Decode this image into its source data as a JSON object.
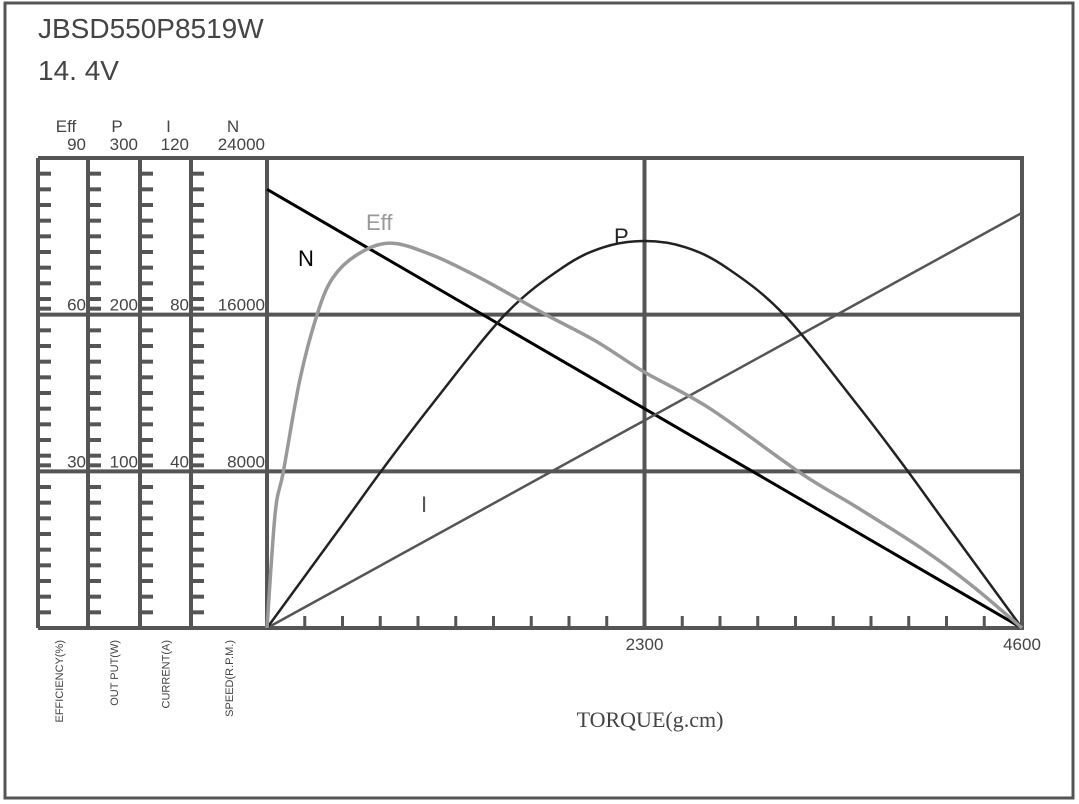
{
  "header": {
    "model": "JBSD550P8519W",
    "voltage": "14. 4V"
  },
  "chart_data": {
    "type": "line",
    "xlabel": "TORQUE(g.cm)",
    "xlim": [
      0,
      4600
    ],
    "x_ticks": [
      "2300",
      "4600"
    ],
    "x_minor_step": 230,
    "grid": true,
    "y_axes": [
      {
        "key": "eff",
        "name": "Eff",
        "label": "EFFICIENCY(%)",
        "max": 90,
        "ticks": [
          "30",
          "60",
          "90"
        ]
      },
      {
        "key": "p",
        "name": "P",
        "label": "OUT PUT(W)",
        "max": 300,
        "ticks": [
          "100",
          "200",
          "300"
        ]
      },
      {
        "key": "i",
        "name": "I",
        "label": "CURRENT(A)",
        "max": 120,
        "ticks": [
          "40",
          "80",
          "120"
        ]
      },
      {
        "key": "n",
        "name": "N",
        "label": "SPEED(R.P.M.)",
        "max": 24000,
        "ticks": [
          "8000",
          "16000",
          "24000"
        ]
      }
    ],
    "series": [
      {
        "name": "N",
        "axis": "n",
        "color": "#000000",
        "x": [
          0,
          4600
        ],
        "y": [
          22400,
          0
        ]
      },
      {
        "name": "I",
        "axis": "i",
        "color": "#555555",
        "x": [
          0,
          4600
        ],
        "y": [
          0,
          106
        ]
      },
      {
        "name": "P",
        "axis": "p",
        "color": "#222222",
        "x": [
          0,
          460,
          695,
          1000,
          1450,
          1800,
          2050,
          2300,
          2550,
          2800,
          3150,
          3600,
          3905,
          4140,
          4600
        ],
        "y": [
          0,
          66,
          100,
          142,
          200,
          230,
          243,
          247,
          243,
          230,
          200,
          142,
          100,
          66,
          0
        ]
      },
      {
        "name": "Eff",
        "axis": "eff",
        "color": "#999999",
        "x": [
          0,
          50,
          100,
          200,
          305,
          400,
          550,
          750,
          1000,
          1300,
          1700,
          2000,
          2300,
          2700,
          3250,
          3600,
          4000,
          4300,
          4600
        ],
        "y": [
          0,
          22,
          30,
          47.5,
          60,
          67,
          71.5,
          73.7,
          71.5,
          67,
          60,
          55,
          49,
          42,
          29.7,
          23,
          15,
          8,
          0
        ]
      }
    ]
  }
}
